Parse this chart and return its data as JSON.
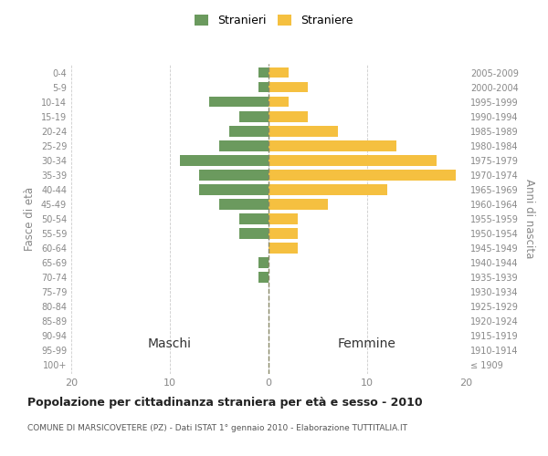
{
  "age_groups": [
    "100+",
    "95-99",
    "90-94",
    "85-89",
    "80-84",
    "75-79",
    "70-74",
    "65-69",
    "60-64",
    "55-59",
    "50-54",
    "45-49",
    "40-44",
    "35-39",
    "30-34",
    "25-29",
    "20-24",
    "15-19",
    "10-14",
    "5-9",
    "0-4"
  ],
  "birth_years": [
    "≤ 1909",
    "1910-1914",
    "1915-1919",
    "1920-1924",
    "1925-1929",
    "1930-1934",
    "1935-1939",
    "1940-1944",
    "1945-1949",
    "1950-1954",
    "1955-1959",
    "1960-1964",
    "1965-1969",
    "1970-1974",
    "1975-1979",
    "1980-1984",
    "1985-1989",
    "1990-1994",
    "1995-1999",
    "2000-2004",
    "2005-2009"
  ],
  "males": [
    0,
    0,
    0,
    0,
    0,
    0,
    1,
    1,
    0,
    3,
    3,
    5,
    7,
    7,
    9,
    5,
    4,
    3,
    6,
    1,
    1
  ],
  "females": [
    0,
    0,
    0,
    0,
    0,
    0,
    0,
    0,
    3,
    3,
    3,
    6,
    12,
    19,
    17,
    13,
    7,
    4,
    2,
    4,
    2
  ],
  "male_color": "#6b9a5e",
  "female_color": "#f5c040",
  "background_color": "#ffffff",
  "grid_color": "#cccccc",
  "title": "Popolazione per cittadinanza straniera per età e sesso - 2010",
  "subtitle": "COMUNE DI MARSICOVETERE (PZ) - Dati ISTAT 1° gennaio 2010 - Elaborazione TUTTITALIA.IT",
  "xlabel_left": "Maschi",
  "xlabel_right": "Femmine",
  "ylabel_left": "Fasce di età",
  "ylabel_right": "Anni di nascita",
  "legend_male": "Stranieri",
  "legend_female": "Straniere",
  "xlim": 20,
  "label_color": "#888888",
  "title_color": "#222222",
  "subtitle_color": "#555555"
}
